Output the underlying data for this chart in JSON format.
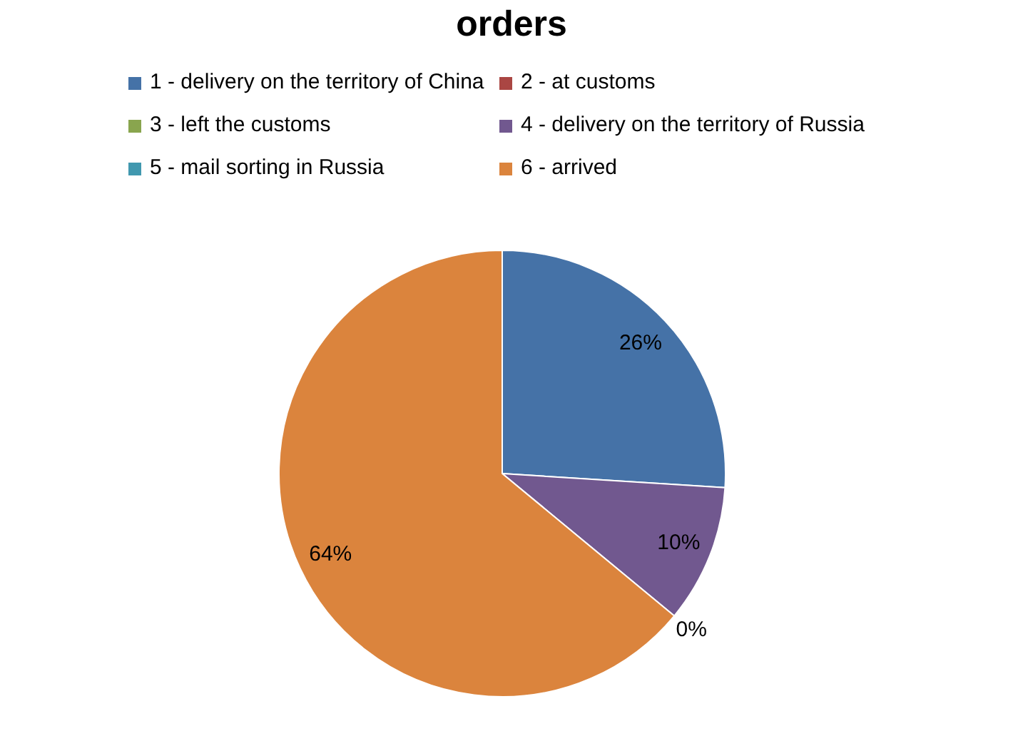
{
  "chart_data": {
    "type": "pie",
    "title": "orders",
    "categories": [
      "1 - delivery on the territory of China",
      "2 - at customs",
      "3 - left the customs",
      "4 - delivery on the territory of Russia",
      "5 - mail sorting in Russia",
      "6 - arrived"
    ],
    "values": [
      26,
      0,
      0,
      10,
      0,
      64
    ],
    "colors": [
      "#4572a7",
      "#aa4643",
      "#89a54e",
      "#71588f",
      "#4198af",
      "#db843d"
    ],
    "value_labels": [
      "26%",
      null,
      null,
      "10%",
      "0%",
      "64%"
    ],
    "legend": "top"
  }
}
